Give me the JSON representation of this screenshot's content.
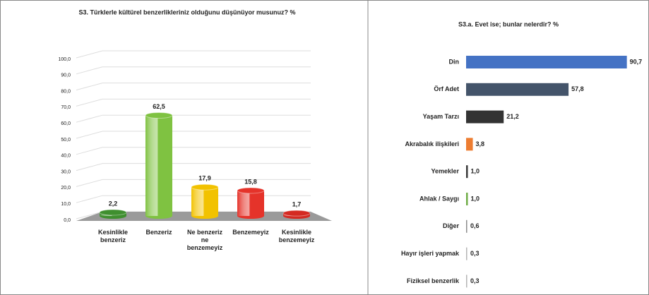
{
  "chart_data": [
    {
      "type": "cylinder-bar",
      "title": "S3. Türklerle kültürel benzerlikleriniz olduğunu düşünüyor musunuz? %",
      "categories": [
        "Kesinlikle benzeriz",
        "Benzeriz",
        "Ne benzeriz ne benzemeyiz",
        "Benzemeyiz",
        "Kesinlikle benzemeyiz"
      ],
      "values": [
        2.2,
        62.5,
        17.9,
        15.8,
        1.7
      ],
      "value_labels": [
        "2,2",
        "62,5",
        "17,9",
        "15,8",
        "1,7"
      ],
      "colors": [
        "#3f8f2f",
        "#7fc241",
        "#f2c200",
        "#e5332a",
        "#d42a22"
      ],
      "ylim": [
        0,
        100
      ],
      "yticks": [
        {
          "value": 0,
          "label": "0,0"
        },
        {
          "value": 10,
          "label": "10,0"
        },
        {
          "value": 20,
          "label": "20,0"
        },
        {
          "value": 30,
          "label": "30,0"
        },
        {
          "value": 40,
          "label": "40,0"
        },
        {
          "value": 50,
          "label": "50,0"
        },
        {
          "value": 60,
          "label": "60,0"
        },
        {
          "value": 70,
          "label": "70,0"
        },
        {
          "value": 80,
          "label": "80,0"
        },
        {
          "value": 90,
          "label": "90,0"
        },
        {
          "value": 100,
          "label": "100,0"
        }
      ],
      "grid": true
    },
    {
      "type": "hbar",
      "title": "S3.a. Evet ise; bunlar nelerdir? %",
      "categories": [
        "Din",
        "Örf Adet",
        "Yaşam Tarzı",
        "Akrabalık ilişkileri",
        "Yemekler",
        "Ahlak / Saygı",
        "Diğer",
        "Hayır işleri yapmak",
        "Fiziksel benzerlik"
      ],
      "values": [
        90.7,
        57.8,
        21.2,
        3.8,
        1.0,
        1.0,
        0.6,
        0.3,
        0.3
      ],
      "value_labels": [
        "90,7",
        "57,8",
        "21,2",
        "3,8",
        "1,0",
        "1,0",
        "0,6",
        "0,3",
        "0,3"
      ],
      "colors": [
        "#4472c4",
        "#44546a",
        "#333333",
        "#ed7d31",
        "#3a3a3a",
        "#70ad47",
        "#8c8c8c",
        "#b5b5b5",
        "#b5b5b5"
      ],
      "xlim": [
        0,
        100
      ]
    }
  ]
}
